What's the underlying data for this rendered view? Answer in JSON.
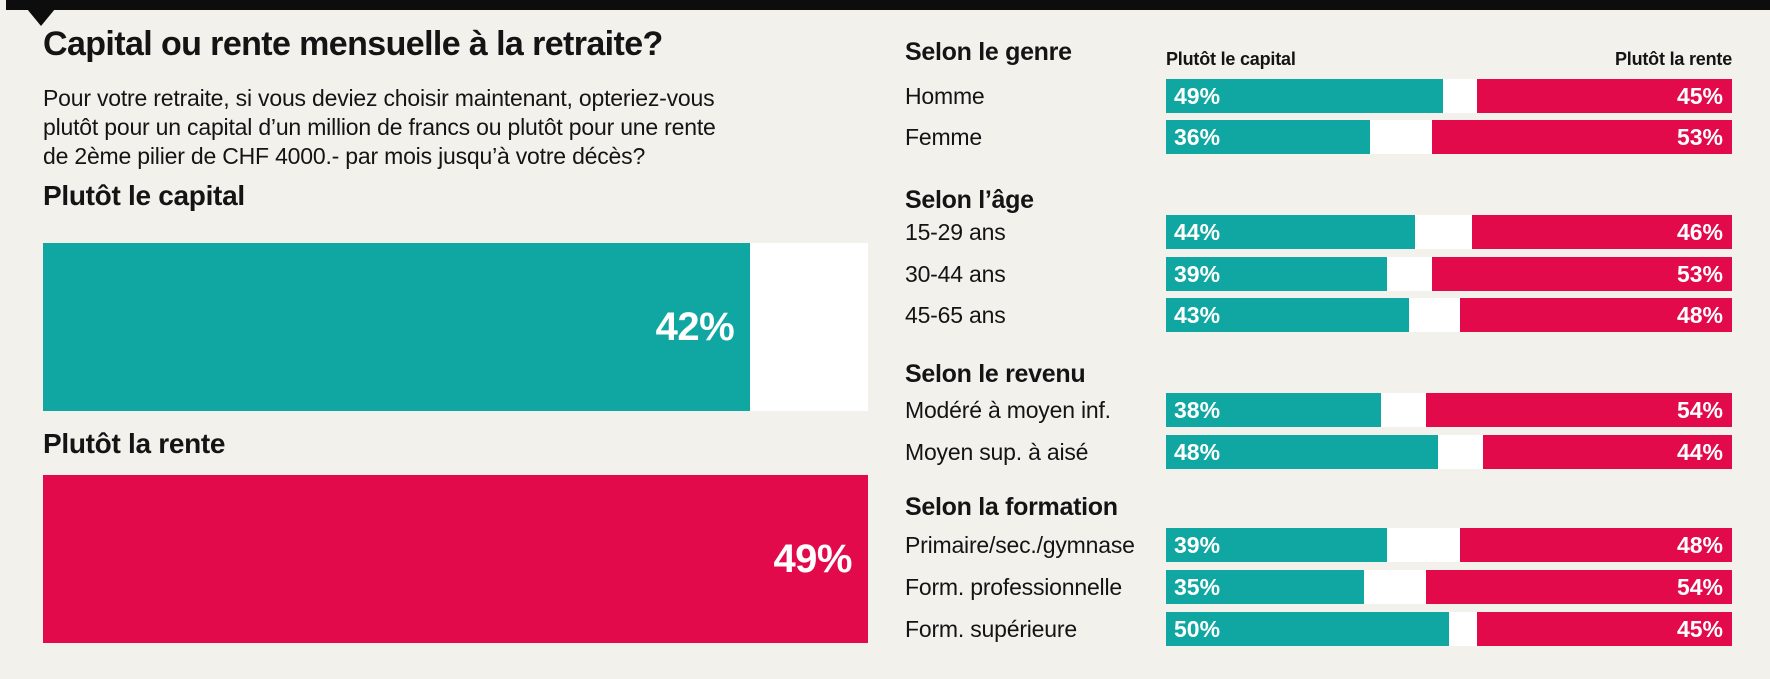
{
  "palette": {
    "background": "#f2f1ec",
    "capital_teal": "#10a7a2",
    "rente_red": "#e20a4b",
    "track_white": "#ffffff",
    "topbar_black": "#0d0d0d",
    "text": "#141414"
  },
  "header": {
    "title": "Capital ou rente mensuelle à la retraite?",
    "subtitle_lines": [
      "Pour votre retraite, si vous deviez choisir maintenant, opteriez-vous",
      "plutôt pour un capital d’un million de francs ou plutôt pour une rente",
      "de 2ème pilier de CHF 4000.- par mois jusqu’à votre décès?"
    ]
  },
  "main_chart": {
    "scale_max_percent": 49,
    "capital": {
      "label": "Plutôt le capital",
      "value": 42,
      "value_label": "42%"
    },
    "rente": {
      "label": "Plutôt la rente",
      "value": 49,
      "value_label": "49%"
    }
  },
  "breakdown": {
    "col_capital": "Plutôt le capital",
    "col_rente": "Plutôt la rente",
    "sections": [
      {
        "title": "Selon le genre",
        "rows": [
          {
            "label": "Homme",
            "capital": 49,
            "capital_label": "49%",
            "rente": 45,
            "rente_label": "45%"
          },
          {
            "label": "Femme",
            "capital": 36,
            "capital_label": "36%",
            "rente": 53,
            "rente_label": "53%"
          }
        ]
      },
      {
        "title": "Selon l’âge",
        "rows": [
          {
            "label": "15-29 ans",
            "capital": 44,
            "capital_label": "44%",
            "rente": 46,
            "rente_label": "46%"
          },
          {
            "label": "30-44 ans",
            "capital": 39,
            "capital_label": "39%",
            "rente": 53,
            "rente_label": "53%"
          },
          {
            "label": "45-65 ans",
            "capital": 43,
            "capital_label": "43%",
            "rente": 48,
            "rente_label": "48%"
          }
        ]
      },
      {
        "title": "Selon le revenu",
        "rows": [
          {
            "label": "Modéré à moyen inf.",
            "capital": 38,
            "capital_label": "38%",
            "rente": 54,
            "rente_label": "54%"
          },
          {
            "label": "Moyen sup. à aisé",
            "capital": 48,
            "capital_label": "48%",
            "rente": 44,
            "rente_label": "44%"
          }
        ]
      },
      {
        "title": "Selon la formation",
        "rows": [
          {
            "label": "Primaire/sec./gymnase",
            "capital": 39,
            "capital_label": "39%",
            "rente": 48,
            "rente_label": "48%"
          },
          {
            "label": "Form. professionnelle",
            "capital": 35,
            "capital_label": "35%",
            "rente": 54,
            "rente_label": "54%"
          },
          {
            "label": "Form. supérieure",
            "capital": 50,
            "capital_label": "50%",
            "rente": 45,
            "rente_label": "45%"
          }
        ]
      }
    ]
  },
  "chart_data": [
    {
      "type": "bar",
      "orientation": "horizontal",
      "title": "Capital ou rente mensuelle à la retraite?",
      "subtitle": "Pour votre retraite, si vous deviez choisir maintenant, opteriez-vous plutôt pour un capital d’un million de francs ou plutôt pour une rente de 2ème pilier de CHF 4000.- par mois jusqu’à votre décès?",
      "categories": [
        "Plutôt le capital",
        "Plutôt la rente"
      ],
      "values": [
        42,
        49
      ],
      "unit": "%",
      "colors": [
        "#10a7a2",
        "#e20a4b"
      ],
      "xlim": [
        0,
        49
      ],
      "data_labels": [
        "42%",
        "49%"
      ],
      "grid": false,
      "legend": false
    },
    {
      "type": "bar",
      "orientation": "horizontal",
      "subtype": "opposed-pair-100pct",
      "series": [
        {
          "name": "Plutôt le capital",
          "color": "#10a7a2",
          "values": [
            49,
            36,
            44,
            39,
            43,
            38,
            48,
            39,
            35,
            50
          ]
        },
        {
          "name": "Plutôt la rente",
          "color": "#e20a4b",
          "values": [
            45,
            53,
            46,
            53,
            48,
            54,
            44,
            48,
            54,
            45
          ]
        }
      ],
      "categories": [
        "Homme",
        "Femme",
        "15-29 ans",
        "30-44 ans",
        "45-65 ans",
        "Modéré à moyen inf.",
        "Moyen sup. à aisé",
        "Primaire/sec./gymnase",
        "Form. professionnelle",
        "Form. supérieure"
      ],
      "groups": [
        {
          "title": "Selon le genre",
          "rows": [
            "Homme",
            "Femme"
          ]
        },
        {
          "title": "Selon l’âge",
          "rows": [
            "15-29 ans",
            "30-44 ans",
            "45-65 ans"
          ]
        },
        {
          "title": "Selon le revenu",
          "rows": [
            "Modéré à moyen inf.",
            "Moyen sup. à aisé"
          ]
        },
        {
          "title": "Selon la formation",
          "rows": [
            "Primaire/sec./gymnase",
            "Form. professionnelle",
            "Form. supérieure"
          ]
        }
      ],
      "unit": "%",
      "xlim": [
        0,
        100
      ],
      "grid": false,
      "legend_position": "top"
    }
  ]
}
